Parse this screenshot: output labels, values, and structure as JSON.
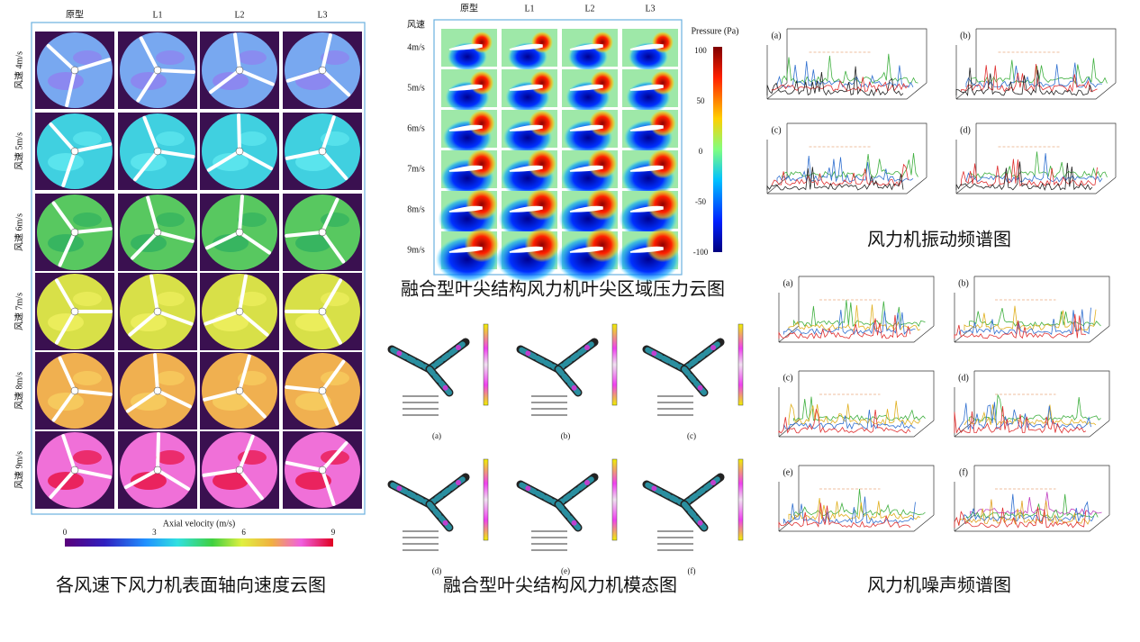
{
  "velocity_figure": {
    "columns": [
      "原型",
      "L1",
      "L2",
      "L3"
    ],
    "rows": [
      "风速 4m/s",
      "风速 5m/s",
      "风速 6m/s",
      "风速 7m/s",
      "风速 8m/s",
      "风速 9m/s"
    ],
    "colorbar_label": "Axial velocity (m/s)",
    "colorbar_ticks": [
      0,
      3,
      6,
      9
    ],
    "caption": "各风速下风力机表面轴向速度云图"
  },
  "pressure_figure": {
    "corner_label": "风速",
    "columns": [
      "原型",
      "L1",
      "L2",
      "L3"
    ],
    "rows": [
      "4m/s",
      "5m/s",
      "6m/s",
      "7m/s",
      "8m/s",
      "9m/s"
    ],
    "colorbar_label": "Pressure (Pa)",
    "colorbar_ticks": [
      100,
      50,
      0,
      -50,
      -100
    ],
    "caption": "融合型叶尖结构风力机叶尖区域压力云图"
  },
  "modal_figure": {
    "panels": [
      "(a)",
      "(b)",
      "(c)",
      "(d)",
      "(e)",
      "(f)"
    ],
    "caption": "融合型叶尖结构风力机模态图"
  },
  "vibration_figure": {
    "panels": [
      "(a)",
      "(b)",
      "(c)",
      "(d)"
    ],
    "caption": "风力机振动频谱图"
  },
  "noise_figure": {
    "panels": [
      "(a)",
      "(b)",
      "(c)",
      "(d)",
      "(e)",
      "(f)"
    ],
    "caption": "风力机噪声频谱图"
  }
}
